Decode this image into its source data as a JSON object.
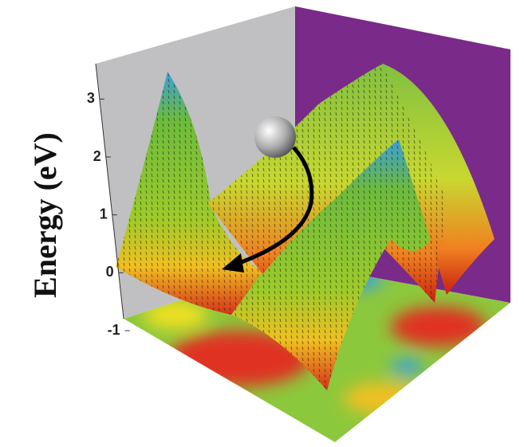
{
  "chart_data": {
    "type": "surface",
    "zlabel": "Energy (eV)",
    "zlim": [
      -1,
      3.5
    ],
    "zticks": [
      -1,
      0,
      1,
      2,
      3
    ]
  }
}
